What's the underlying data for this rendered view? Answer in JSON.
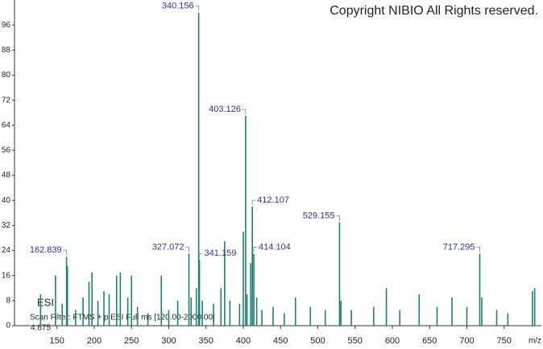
{
  "chart_data": {
    "type": "stick",
    "copyright": "Copyright NIBIO All Rights reserved.",
    "ionization": "ESI",
    "scan_filter": "Scan Filter: FTMS + p ESI Full ms [120.00-2000.00]",
    "retention": "4.675",
    "xlabel": "m/z",
    "color": "#1f7f72",
    "label_color": "#2b2fa6",
    "xlim": [
      93,
      800
    ],
    "ylim": [
      0,
      104
    ],
    "xticks": [
      150,
      200,
      250,
      300,
      350,
      400,
      450,
      500,
      550,
      600,
      650,
      700,
      750
    ],
    "yticks": [
      0,
      8,
      16,
      24,
      32,
      40,
      48,
      56,
      64,
      72,
      80,
      88,
      96
    ],
    "x": [
      128,
      148,
      157,
      164,
      175,
      185,
      193,
      197,
      205,
      213,
      220,
      230,
      235,
      245,
      250,
      258,
      272,
      290,
      300,
      312,
      330,
      337,
      345,
      360,
      370,
      375,
      382,
      395,
      400,
      405,
      410,
      418,
      425,
      440,
      455,
      470,
      490,
      510,
      531,
      545,
      575,
      592,
      610,
      636,
      660,
      680,
      700,
      720,
      740,
      755,
      788,
      791
    ],
    "values": [
      10,
      16,
      7,
      19,
      5,
      9,
      14,
      17,
      8,
      11,
      10,
      16,
      17,
      9,
      16,
      6,
      4,
      16,
      5,
      8,
      9,
      12,
      8,
      7,
      12,
      27,
      8,
      7,
      30,
      10,
      20,
      9,
      5,
      6,
      4,
      9,
      6,
      5,
      8,
      5,
      6,
      12,
      5,
      10,
      6,
      9,
      6,
      9,
      5,
      4,
      11,
      12
    ],
    "annotated": {
      "x": [
        162.839,
        327.072,
        340.156,
        341.159,
        403.126,
        412.107,
        414.104,
        529.155,
        717.295
      ],
      "values": [
        22,
        23,
        100,
        21,
        67,
        38,
        23,
        33,
        23
      ]
    }
  }
}
